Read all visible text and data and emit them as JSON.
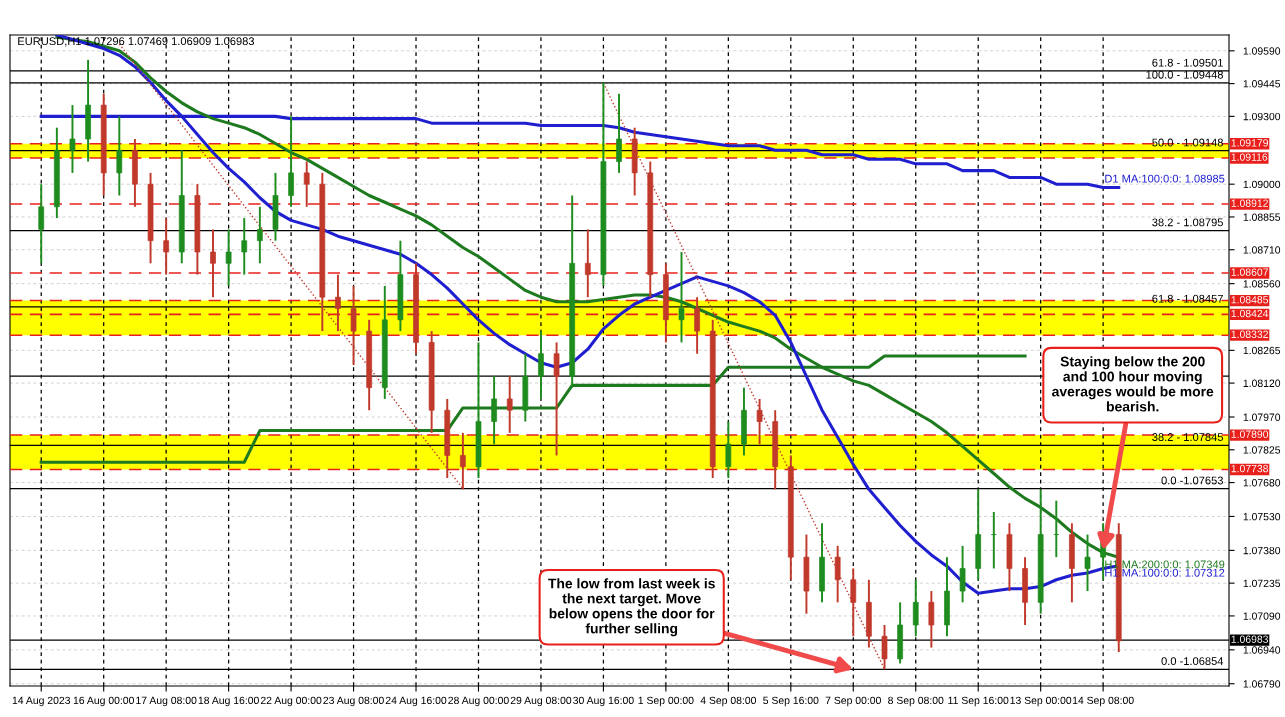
{
  "chart_data": {
    "type": "candlestick",
    "title": "EURUSD,H1 1.07296 1.07469 1.06909 1.06983",
    "categories": [
      "14 Aug 2023",
      null,
      null,
      null,
      "16 Aug 00:00",
      null,
      null,
      null,
      "17 Aug 08:00",
      null,
      null,
      null,
      "18 Aug 16:00",
      null,
      null,
      null,
      "22 Aug 00:00",
      null,
      null,
      null,
      "23 Aug 08:00",
      null,
      null,
      null,
      "24 Aug 16:00",
      null,
      null,
      null,
      "28 Aug 00:00",
      null,
      null,
      null,
      "29 Aug 08:00",
      null,
      null,
      null,
      "30 Aug 16:00",
      null,
      null,
      null,
      "1 Sep 00:00",
      null,
      null,
      null,
      "4 Sep 08:00",
      null,
      null,
      null,
      "5 Sep 16:00",
      null,
      null,
      null,
      "7 Sep 00:00",
      null,
      null,
      null,
      "8 Sep 08:00",
      null,
      null,
      null,
      "11 Sep 16:00",
      null,
      null,
      null,
      "13 Sep 00:00",
      null,
      null,
      null,
      "14 Sep 08:00",
      null
    ],
    "ohlc": [
      [
        1.088,
        1.09,
        1.0865,
        1.089
      ],
      [
        1.089,
        1.0925,
        1.0885,
        1.0915
      ],
      [
        1.0915,
        1.0935,
        1.0905,
        1.092
      ],
      [
        1.092,
        1.0955,
        1.091,
        1.0935
      ],
      [
        1.0935,
        1.094,
        1.0895,
        1.0905
      ],
      [
        1.0905,
        1.093,
        1.0895,
        1.0915
      ],
      [
        1.0915,
        1.092,
        1.089,
        1.09
      ],
      [
        1.09,
        1.0905,
        1.0865,
        1.0875
      ],
      [
        1.0875,
        1.0885,
        1.086,
        1.087
      ],
      [
        1.087,
        1.0915,
        1.0865,
        1.0895
      ],
      [
        1.0895,
        1.09,
        1.086,
        1.087
      ],
      [
        1.087,
        1.088,
        1.085,
        1.0865
      ],
      [
        1.0865,
        1.088,
        1.0855,
        1.087
      ],
      [
        1.087,
        1.0885,
        1.086,
        1.0875
      ],
      [
        1.0875,
        1.089,
        1.0865,
        1.088
      ],
      [
        1.088,
        1.0905,
        1.0875,
        1.0895
      ],
      [
        1.0895,
        1.093,
        1.089,
        1.0905
      ],
      [
        1.0905,
        1.091,
        1.089,
        1.09
      ],
      [
        1.09,
        1.0905,
        1.0835,
        1.085
      ],
      [
        1.085,
        1.086,
        1.0835,
        1.0845
      ],
      [
        1.0845,
        1.0855,
        1.082,
        1.0835
      ],
      [
        1.0835,
        1.084,
        1.08,
        1.081
      ],
      [
        1.081,
        1.0855,
        1.0805,
        1.084
      ],
      [
        1.084,
        1.0875,
        1.0835,
        1.086
      ],
      [
        1.086,
        1.0865,
        1.0825,
        1.083
      ],
      [
        1.083,
        1.0835,
        1.079,
        1.08
      ],
      [
        1.08,
        1.0805,
        1.077,
        1.078
      ],
      [
        1.078,
        1.079,
        1.0765,
        1.0775
      ],
      [
        1.0775,
        1.083,
        1.077,
        1.0795
      ],
      [
        1.0795,
        1.0815,
        1.0785,
        1.0805
      ],
      [
        1.0805,
        1.0815,
        1.079,
        1.08
      ],
      [
        1.08,
        1.0825,
        1.0795,
        1.0815
      ],
      [
        1.0815,
        1.0835,
        1.0805,
        1.0825
      ],
      [
        1.0825,
        1.083,
        1.078,
        1.0815
      ],
      [
        1.0815,
        1.0895,
        1.081,
        1.0865
      ],
      [
        1.0865,
        1.088,
        1.085,
        1.086
      ],
      [
        1.086,
        1.0945,
        1.0855,
        1.091
      ],
      [
        1.091,
        1.094,
        1.0905,
        1.092
      ],
      [
        1.092,
        1.0925,
        1.0895,
        1.0905
      ],
      [
        1.0905,
        1.091,
        1.085,
        1.086
      ],
      [
        1.086,
        1.0865,
        1.083,
        1.084
      ],
      [
        1.084,
        1.087,
        1.083,
        1.0845
      ],
      [
        1.0845,
        1.085,
        1.0825,
        1.0835
      ],
      [
        1.0835,
        1.084,
        1.077,
        1.0775
      ],
      [
        1.0775,
        1.0795,
        1.077,
        1.0785
      ],
      [
        1.0785,
        1.081,
        1.078,
        1.08
      ],
      [
        1.08,
        1.0805,
        1.0785,
        1.0795
      ],
      [
        1.0795,
        1.08,
        1.0765,
        1.0775
      ],
      [
        1.0775,
        1.078,
        1.0725,
        1.0735
      ],
      [
        1.0735,
        1.0745,
        1.071,
        1.072
      ],
      [
        1.072,
        1.075,
        1.0715,
        1.0735
      ],
      [
        1.0735,
        1.074,
        1.0715,
        1.0725
      ],
      [
        1.0725,
        1.073,
        1.07,
        1.0715
      ],
      [
        1.0715,
        1.0725,
        1.0695,
        1.07
      ],
      [
        1.07,
        1.0705,
        1.06854,
        1.069
      ],
      [
        1.069,
        1.0715,
        1.0688,
        1.0705
      ],
      [
        1.0705,
        1.0725,
        1.07,
        1.0715
      ],
      [
        1.0715,
        1.072,
        1.0695,
        1.0705
      ],
      [
        1.0705,
        1.0735,
        1.07,
        1.072
      ],
      [
        1.072,
        1.074,
        1.0715,
        1.073
      ],
      [
        1.073,
        1.0765,
        1.0725,
        1.0745
      ],
      [
        1.0745,
        1.0755,
        1.073,
        1.0745
      ],
      [
        1.0745,
        1.075,
        1.072,
        1.073
      ],
      [
        1.073,
        1.0735,
        1.0705,
        1.0715
      ],
      [
        1.0715,
        1.0765,
        1.071,
        1.0745
      ],
      [
        1.0745,
        1.076,
        1.0735,
        1.0745
      ],
      [
        1.0745,
        1.075,
        1.0715,
        1.073
      ],
      [
        1.073,
        1.0745,
        1.072,
        1.0735
      ],
      [
        1.0735,
        1.075,
        1.0725,
        1.0745
      ],
      [
        1.0745,
        1.075,
        1.0693,
        1.0698
      ]
    ],
    "colors": [
      "#1e8c1e",
      "#1e8c1e",
      "#1e8c1e",
      "#1e8c1e",
      "#c0392b",
      "#1e8c1e",
      "#c0392b",
      "#c0392b",
      "#c0392b",
      "#1e8c1e",
      "#c0392b",
      "#c0392b",
      "#1e8c1e",
      "#1e8c1e",
      "#1e8c1e",
      "#1e8c1e",
      "#1e8c1e",
      "#c0392b",
      "#c0392b",
      "#c0392b",
      "#c0392b",
      "#c0392b",
      "#1e8c1e",
      "#1e8c1e",
      "#c0392b",
      "#c0392b",
      "#c0392b",
      "#c0392b",
      "#1e8c1e",
      "#1e8c1e",
      "#c0392b",
      "#1e8c1e",
      "#1e8c1e",
      "#c0392b",
      "#1e8c1e",
      "#c0392b",
      "#1e8c1e",
      "#1e8c1e",
      "#c0392b",
      "#c0392b",
      "#c0392b",
      "#1e8c1e",
      "#c0392b",
      "#c0392b",
      "#1e8c1e",
      "#1e8c1e",
      "#c0392b",
      "#c0392b",
      "#c0392b",
      "#c0392b",
      "#1e8c1e",
      "#c0392b",
      "#c0392b",
      "#c0392b",
      "#c0392b",
      "#1e8c1e",
      "#1e8c1e",
      "#c0392b",
      "#1e8c1e",
      "#1e8c1e",
      "#1e8c1e",
      "#1e8c1e",
      "#c0392b",
      "#c0392b",
      "#1e8c1e",
      "#1e8c1e",
      "#c0392b",
      "#1e8c1e",
      "#1e8c1e",
      "#c0392b"
    ],
    "series": [
      {
        "type": "line",
        "name": "D1 MA:100:0:0: 1.08985",
        "color": "#1f1fd0",
        "values": [
          1.093,
          1.093,
          1.093,
          1.093,
          1.093,
          1.093,
          1.093,
          1.093,
          1.093,
          1.093,
          1.093,
          1.093,
          1.093,
          1.093,
          1.093,
          1.093,
          1.0929,
          1.0929,
          1.0929,
          1.0929,
          1.0929,
          1.0929,
          1.0929,
          1.0929,
          1.0929,
          1.0927,
          1.0927,
          1.0927,
          1.0927,
          1.0927,
          1.0927,
          1.0927,
          1.0926,
          1.0926,
          1.0926,
          1.0926,
          1.0926,
          1.0925,
          1.0923,
          1.0922,
          1.0921,
          1.092,
          1.0919,
          1.0918,
          1.0917,
          1.0917,
          1.0917,
          1.0915,
          1.0915,
          1.0915,
          1.0913,
          1.0913,
          1.0913,
          1.0911,
          1.0911,
          1.0911,
          1.0909,
          1.0909,
          1.0909,
          1.0906,
          1.0906,
          1.0906,
          1.0903,
          1.0903,
          1.0903,
          1.09,
          1.09,
          1.09,
          1.08985,
          1.08985
        ]
      },
      {
        "type": "line",
        "color": "#1e7a1e",
        "values": [
          1.0777,
          1.0777,
          1.0777,
          1.0777,
          1.0777,
          1.0777,
          1.0777,
          1.0777,
          1.0777,
          1.0777,
          1.0777,
          1.0777,
          1.0777,
          1.0777,
          1.0791,
          1.0791,
          1.0791,
          1.0791,
          1.0791,
          1.0791,
          1.0791,
          1.0791,
          1.0791,
          1.0791,
          1.0791,
          1.0791,
          1.0791,
          1.0801,
          1.0801,
          1.0801,
          1.0801,
          1.0801,
          1.0801,
          1.0801,
          1.0811,
          1.0811,
          1.0811,
          1.0811,
          1.0811,
          1.0811,
          1.0811,
          1.0811,
          1.0811,
          1.0811,
          1.0819,
          1.0819,
          1.0819,
          1.0819,
          1.0819,
          1.0819,
          1.0819,
          1.0819,
          1.0819,
          1.0819,
          1.0824,
          1.0824,
          1.0824,
          1.0824,
          1.0824,
          1.0824,
          1.0824,
          1.0824,
          1.0824,
          1.0824,
          null,
          null,
          null,
          null,
          null,
          null
        ]
      },
      {
        "type": "line",
        "name": "H1 MA:200:0:0: 1.07349",
        "color": "#1e7a1e",
        "values": [
          null,
          1.0965,
          1.0964,
          1.0963,
          1.0961,
          1.0959,
          1.0954,
          1.0947,
          1.0941,
          1.0936,
          1.0932,
          1.0929,
          1.0927,
          1.0925,
          1.0922,
          1.0918,
          1.0914,
          1.0911,
          1.0907,
          1.0903,
          1.0899,
          1.0895,
          1.0892,
          1.0889,
          1.0886,
          1.0882,
          1.0877,
          1.0872,
          1.0868,
          1.0863,
          1.0858,
          1.0853,
          1.085,
          1.0848,
          1.0848,
          1.0848,
          1.0849,
          1.085,
          1.0851,
          1.0851,
          1.085,
          1.0848,
          1.0845,
          1.0842,
          1.0839,
          1.0837,
          1.0835,
          1.0832,
          1.0827,
          1.0823,
          1.0819,
          1.0816,
          1.0813,
          1.0811,
          1.0807,
          1.0803,
          1.0799,
          1.0795,
          1.079,
          1.0784,
          1.0778,
          1.0772,
          1.0766,
          1.0761,
          1.0757,
          1.0752,
          1.0746,
          1.0741,
          1.0737,
          1.07349
        ]
      },
      {
        "type": "line",
        "name": "H1 MA:100:0:0: 1.07312",
        "color": "#1f1fd0",
        "values": [
          null,
          1.0966,
          1.0964,
          1.0962,
          1.096,
          1.0957,
          1.0952,
          1.0945,
          1.0937,
          1.093,
          1.0922,
          1.0914,
          1.0907,
          1.0901,
          1.0894,
          1.0888,
          1.0884,
          1.0882,
          1.088,
          1.0877,
          1.0875,
          1.0873,
          1.0871,
          1.0869,
          1.0865,
          1.086,
          1.0854,
          1.0847,
          1.084,
          1.0834,
          1.0829,
          1.0825,
          1.0821,
          1.0819,
          1.0821,
          1.0827,
          1.0836,
          1.0842,
          1.0847,
          1.085,
          1.0853,
          1.0856,
          1.0859,
          1.0857,
          1.0855,
          1.0852,
          1.0848,
          1.0842,
          1.083,
          1.0815,
          1.08,
          1.0788,
          1.0776,
          1.0765,
          1.0757,
          1.0749,
          1.0742,
          1.0736,
          1.0731,
          1.0724,
          1.0719,
          1.072,
          1.0721,
          1.0721,
          1.0722,
          1.0725,
          1.0727,
          1.0728,
          1.073,
          1.07312
        ]
      },
      {
        "type": "line",
        "color": "#c0392b",
        "line_style": "dotted",
        "values": [
          null,
          null,
          null,
          null,
          null,
          1.0962,
          null,
          null,
          null,
          null,
          null,
          null,
          null,
          null,
          null,
          null,
          null,
          null,
          null,
          null,
          null,
          null,
          null,
          null,
          null,
          null,
          null,
          1.07653,
          null,
          null,
          null,
          null,
          null,
          null,
          null,
          null,
          null,
          null,
          null,
          null,
          null,
          null,
          null,
          null,
          null,
          null,
          null,
          null,
          null,
          null,
          null,
          null,
          null,
          null,
          null,
          null,
          null,
          null,
          null,
          null,
          null,
          null,
          null,
          null,
          null,
          null,
          null,
          null,
          null,
          null
        ]
      },
      {
        "type": "line",
        "color": "#c0392b",
        "line_style": "dotted",
        "values": [
          null,
          null,
          null,
          null,
          null,
          null,
          null,
          null,
          null,
          null,
          null,
          null,
          null,
          null,
          null,
          null,
          null,
          null,
          null,
          null,
          null,
          null,
          null,
          null,
          null,
          null,
          null,
          null,
          null,
          null,
          null,
          null,
          null,
          null,
          null,
          null,
          1.09448,
          null,
          null,
          null,
          null,
          null,
          null,
          null,
          null,
          null,
          null,
          null,
          null,
          null,
          null,
          null,
          null,
          null,
          1.06854,
          null,
          null,
          null,
          null,
          null,
          null,
          null,
          null,
          null,
          null,
          null,
          null,
          null,
          null,
          null
        ]
      }
    ],
    "ylim": [
      1.0678,
      1.0966
    ],
    "yticks": [
      {
        "value": 1.0959,
        "label": "1.09590"
      },
      {
        "value": 1.09445,
        "label": "1.09445"
      },
      {
        "value": 1.093,
        "label": "1.09300"
      },
      {
        "value": 1.09,
        "label": "1.09000"
      },
      {
        "value": 1.08855,
        "label": "1.08855"
      },
      {
        "value": 1.0871,
        "label": "1.08710"
      },
      {
        "value": 1.0856,
        "label": "1.08560"
      },
      {
        "value": 1.08265,
        "label": "1.08265"
      },
      {
        "value": 1.0812,
        "label": "1.08120"
      },
      {
        "value": 1.0797,
        "label": "1.07970"
      },
      {
        "value": 1.07825,
        "label": "1.07825"
      },
      {
        "value": 1.0768,
        "label": "1.07680"
      },
      {
        "value": 1.0753,
        "label": "1.07530"
      },
      {
        "value": 1.0738,
        "label": "1.07380"
      },
      {
        "value": 1.07235,
        "label": "1.07235"
      },
      {
        "value": 1.0709,
        "label": "1.07090"
      },
      {
        "value": 1.0694,
        "label": "1.06940"
      },
      {
        "value": 1.0679,
        "label": "1.06790"
      }
    ],
    "grid": true,
    "bands": [
      {
        "axis": "y",
        "from": 1.09116,
        "to": 1.09179,
        "color": "#ffff00"
      },
      {
        "axis": "y",
        "from": 1.08332,
        "to": 1.08485,
        "color": "#ffff00"
      },
      {
        "axis": "y",
        "from": 1.07738,
        "to": 1.0789,
        "color": "#ffff00"
      }
    ],
    "ref_lines": [
      {
        "axis": "y",
        "value": 1.09501,
        "color": "#000000",
        "line_style": "solid"
      },
      {
        "axis": "y",
        "value": 1.09448,
        "color": "#000000",
        "line_style": "solid"
      },
      {
        "axis": "y",
        "value": 1.09148,
        "color": "#000000",
        "line_style": "solid"
      },
      {
        "axis": "y",
        "value": 1.08795,
        "color": "#000000",
        "line_style": "solid"
      },
      {
        "axis": "y",
        "value": 1.08457,
        "color": "#000000",
        "line_style": "solid"
      },
      {
        "axis": "y",
        "value": 1.08151,
        "color": "#000000",
        "line_style": "solid"
      },
      {
        "axis": "y",
        "value": 1.07845,
        "color": "#000000",
        "line_style": "solid"
      },
      {
        "axis": "y",
        "value": 1.07653,
        "color": "#000000",
        "line_style": "solid"
      },
      {
        "axis": "y",
        "value": 1.06854,
        "color": "#000000",
        "line_style": "solid"
      },
      {
        "axis": "y",
        "value": 1.09179,
        "label": "1.09179",
        "color": "#e8201c",
        "line_style": "dashed"
      },
      {
        "axis": "y",
        "value": 1.09116,
        "label": "1.09116",
        "color": "#e8201c",
        "line_style": "dashed"
      },
      {
        "axis": "y",
        "value": 1.08912,
        "label": "1.08912",
        "color": "#e8201c",
        "line_style": "dashed"
      },
      {
        "axis": "y",
        "value": 1.08607,
        "label": "1.08607",
        "color": "#e8201c",
        "line_style": "dashed"
      },
      {
        "axis": "y",
        "value": 1.08485,
        "label": "1.08485",
        "color": "#e8201c",
        "line_style": "dashed"
      },
      {
        "axis": "y",
        "value": 1.08424,
        "label": "1.08424",
        "color": "#e8201c",
        "line_style": "dashed"
      },
      {
        "axis": "y",
        "value": 1.08332,
        "label": "1.08332",
        "color": "#e8201c",
        "line_style": "dashed"
      },
      {
        "axis": "y",
        "value": 1.0789,
        "label": "1.07890",
        "color": "#e8201c",
        "line_style": "dashed"
      },
      {
        "axis": "y",
        "value": 1.07738,
        "label": "1.07738",
        "color": "#e8201c",
        "line_style": "dashed"
      },
      {
        "axis": "y",
        "value": 1.06983,
        "label": "1.06983",
        "color": "#000000",
        "line_style": "solid"
      }
    ],
    "annotations": [
      {
        "text": "61.8 - 1.09501",
        "y": 1.09501
      },
      {
        "text": "100.0 - 1.09448",
        "y": 1.09448
      },
      {
        "text": "50.0 - 1.09148",
        "y": 1.09148
      },
      {
        "text": "38.2 - 1.08795",
        "y": 1.08795
      },
      {
        "text": "61.8 - 1.08457",
        "y": 1.08457
      },
      {
        "text": "38.2 - 1.07845",
        "y": 1.07845
      },
      {
        "text": "0.0 -1.07653",
        "y": 1.07653
      },
      {
        "text": "0.0 -1.06854",
        "y": 1.06854
      },
      {
        "text": "Staying below the 200\nand 100 hour moving\naverages would be more\nbearish.",
        "x": "14 Sep 08:00",
        "y": 1.0738
      },
      {
        "text": "The low from last week is\nthe next target. Move\nbelow opens the door for\nfurther selling",
        "x": "7 Sep 00:00",
        "y": 1.06854
      }
    ]
  }
}
